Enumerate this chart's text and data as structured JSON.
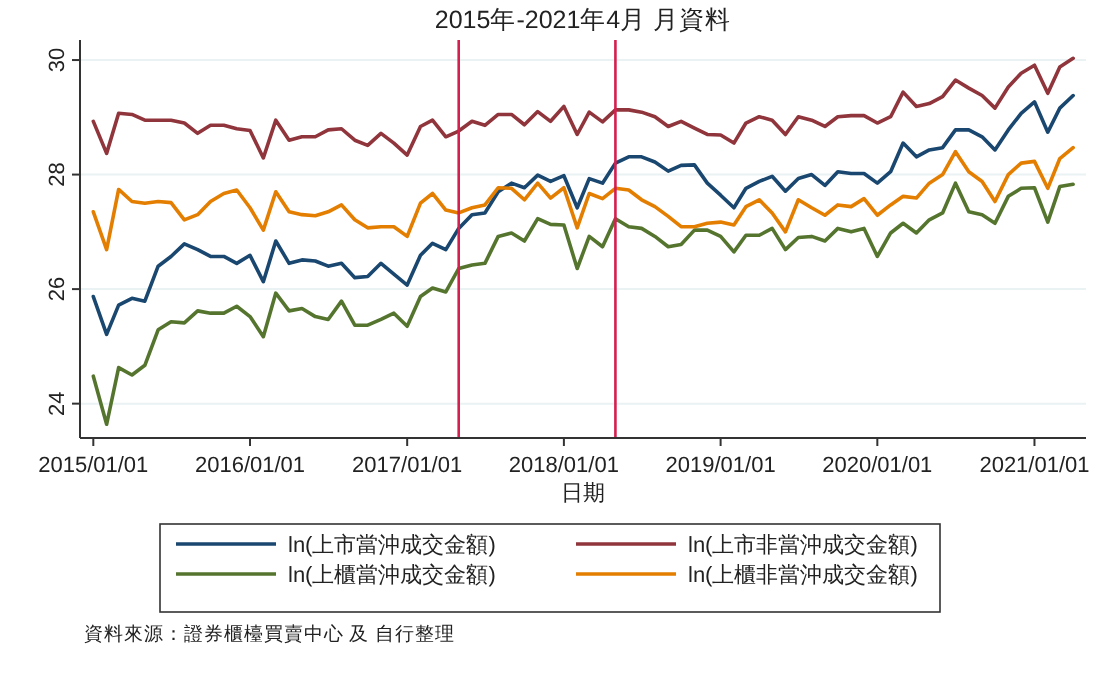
{
  "chart_data": {
    "type": "line",
    "title": "2015年-2021年4月 月資料",
    "xlabel": "日期",
    "x": [
      "2015-01",
      "2015-02",
      "2015-03",
      "2015-04",
      "2015-05",
      "2015-06",
      "2015-07",
      "2015-08",
      "2015-09",
      "2015-10",
      "2015-11",
      "2015-12",
      "2016-01",
      "2016-02",
      "2016-03",
      "2016-04",
      "2016-05",
      "2016-06",
      "2016-07",
      "2016-08",
      "2016-09",
      "2016-10",
      "2016-11",
      "2016-12",
      "2017-01",
      "2017-02",
      "2017-03",
      "2017-04",
      "2017-05",
      "2017-06",
      "2017-07",
      "2017-08",
      "2017-09",
      "2017-10",
      "2017-11",
      "2017-12",
      "2018-01",
      "2018-02",
      "2018-03",
      "2018-04",
      "2018-05",
      "2018-06",
      "2018-07",
      "2018-08",
      "2018-09",
      "2018-10",
      "2018-11",
      "2018-12",
      "2019-01",
      "2019-02",
      "2019-03",
      "2019-04",
      "2019-05",
      "2019-06",
      "2019-07",
      "2019-08",
      "2019-09",
      "2019-10",
      "2019-11",
      "2019-12",
      "2020-01",
      "2020-02",
      "2020-03",
      "2020-04",
      "2020-05",
      "2020-06",
      "2020-07",
      "2020-08",
      "2020-09",
      "2020-10",
      "2020-11",
      "2020-12",
      "2021-01",
      "2021-02",
      "2021-03",
      "2021-04"
    ],
    "series": [
      {
        "name": "ln(上市當沖成交金額)",
        "color": "#1a476f",
        "values": [
          25.87,
          25.21,
          25.72,
          25.84,
          25.79,
          26.4,
          26.57,
          26.79,
          26.69,
          26.57,
          26.57,
          26.45,
          26.59,
          26.13,
          26.84,
          26.45,
          26.51,
          26.49,
          26.4,
          26.45,
          26.2,
          26.22,
          26.45,
          26.26,
          26.07,
          26.59,
          26.8,
          26.69,
          27.06,
          27.3,
          27.33,
          27.7,
          27.85,
          27.77,
          27.99,
          27.88,
          27.98,
          27.42,
          27.93,
          27.85,
          28.2,
          28.31,
          28.31,
          28.22,
          28.06,
          28.16,
          28.17,
          27.85,
          27.64,
          27.42,
          27.76,
          27.88,
          27.97,
          27.71,
          27.93,
          28.0,
          27.81,
          28.05,
          28.02,
          28.02,
          27.85,
          28.05,
          28.55,
          28.31,
          28.43,
          28.47,
          28.78,
          28.78,
          28.66,
          28.43,
          28.78,
          29.07,
          29.27,
          28.74,
          29.16,
          29.38
        ]
      },
      {
        "name": "ln(上市非當沖成交金額)",
        "color": "#90353b",
        "values": [
          28.93,
          28.37,
          29.07,
          29.05,
          28.95,
          28.95,
          28.95,
          28.9,
          28.72,
          28.86,
          28.86,
          28.8,
          28.77,
          28.29,
          28.95,
          28.6,
          28.66,
          28.66,
          28.78,
          28.8,
          28.6,
          28.51,
          28.72,
          28.55,
          28.34,
          28.84,
          28.95,
          28.66,
          28.76,
          28.93,
          28.86,
          29.05,
          29.05,
          28.87,
          29.1,
          28.93,
          29.19,
          28.7,
          29.09,
          28.92,
          29.13,
          29.13,
          29.09,
          29.01,
          28.84,
          28.93,
          28.81,
          28.7,
          28.69,
          28.55,
          28.9,
          29.01,
          28.95,
          28.7,
          29.01,
          28.95,
          28.84,
          29.01,
          29.03,
          29.03,
          28.9,
          29.01,
          29.44,
          29.19,
          29.24,
          29.36,
          29.65,
          29.51,
          29.38,
          29.16,
          29.53,
          29.77,
          29.91,
          29.42,
          29.88,
          30.03
        ]
      },
      {
        "name": "ln(上櫃當沖成交金額)",
        "color": "#55752f",
        "values": [
          24.48,
          23.64,
          24.63,
          24.5,
          24.67,
          25.29,
          25.43,
          25.41,
          25.62,
          25.58,
          25.58,
          25.7,
          25.52,
          25.17,
          25.93,
          25.62,
          25.66,
          25.52,
          25.47,
          25.79,
          25.37,
          25.37,
          25.47,
          25.58,
          25.35,
          25.87,
          26.02,
          25.95,
          26.36,
          26.42,
          26.45,
          26.92,
          26.98,
          26.84,
          27.23,
          27.13,
          27.12,
          26.36,
          26.92,
          26.74,
          27.23,
          27.09,
          27.06,
          26.92,
          26.74,
          26.78,
          27.03,
          27.03,
          26.92,
          26.65,
          26.94,
          26.94,
          27.06,
          26.69,
          26.9,
          26.92,
          26.84,
          27.06,
          27.0,
          27.06,
          26.57,
          26.98,
          27.15,
          26.98,
          27.21,
          27.33,
          27.85,
          27.35,
          27.3,
          27.15,
          27.62,
          27.76,
          27.77,
          27.17,
          27.79,
          27.83
        ]
      },
      {
        "name": "ln(上櫃非當沖成交金額)",
        "color": "#e37e00",
        "values": [
          27.35,
          26.69,
          27.74,
          27.53,
          27.5,
          27.53,
          27.51,
          27.21,
          27.3,
          27.53,
          27.67,
          27.73,
          27.42,
          27.03,
          27.7,
          27.35,
          27.3,
          27.28,
          27.35,
          27.47,
          27.21,
          27.07,
          27.09,
          27.09,
          26.92,
          27.5,
          27.67,
          27.38,
          27.33,
          27.42,
          27.47,
          27.77,
          27.76,
          27.56,
          27.85,
          27.59,
          27.77,
          27.07,
          27.67,
          27.58,
          27.76,
          27.73,
          27.56,
          27.44,
          27.27,
          27.09,
          27.09,
          27.15,
          27.17,
          27.12,
          27.44,
          27.56,
          27.33,
          27.0,
          27.56,
          27.42,
          27.29,
          27.47,
          27.44,
          27.58,
          27.29,
          27.47,
          27.62,
          27.59,
          27.85,
          28.0,
          28.4,
          28.05,
          27.88,
          27.53,
          28.0,
          28.2,
          28.23,
          27.76,
          28.28,
          28.47
        ]
      }
    ],
    "xlim": [
      "2014-12-01",
      "2021-05-01"
    ],
    "xticks": [
      {
        "value": "2015-01-01",
        "label": "2015/01/01"
      },
      {
        "value": "2016-01-01",
        "label": "2016/01/01"
      },
      {
        "value": "2017-01-01",
        "label": "2017/01/01"
      },
      {
        "value": "2018-01-01",
        "label": "2018/01/01"
      },
      {
        "value": "2019-01-01",
        "label": "2019/01/01"
      },
      {
        "value": "2020-01-01",
        "label": "2020/01/01"
      },
      {
        "value": "2021-01-01",
        "label": "2021/01/01"
      }
    ],
    "ylim": [
      23.4,
      30.35
    ],
    "yticks": [
      24,
      26,
      28,
      30
    ],
    "grid": "y",
    "ref_lines": [
      {
        "axis": "x",
        "value": "2017-05-01",
        "color": "#d41f4f"
      },
      {
        "axis": "x",
        "value": "2018-05-01",
        "color": "#d41f4f"
      }
    ],
    "legend": "bottom",
    "annotations": [
      "資料來源：證券櫃檯買賣中心 及 自行整理"
    ]
  }
}
